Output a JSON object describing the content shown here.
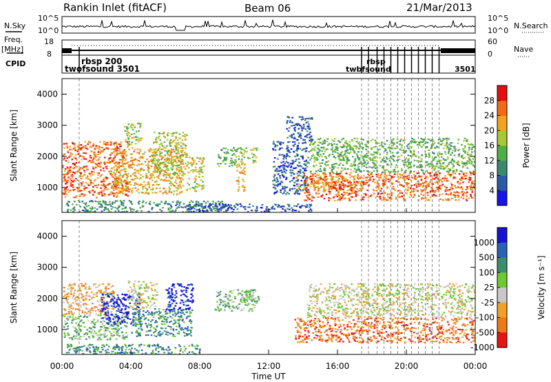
{
  "header": {
    "radar": "Rankin Inlet (fitACF)",
    "beam": "Beam 06",
    "date": "21/Mar/2013"
  },
  "top_panels": {
    "nsky_label": "N.Sky",
    "nsky_ticks": [
      "10^5",
      "10^0"
    ],
    "nsearch_label": "N.Search",
    "nsearch_ticks": [
      "10^5",
      "10^0"
    ],
    "freq_label_1": "Freq.",
    "freq_label_2": "[MHz]",
    "freq_ticks": [
      "18",
      "8"
    ],
    "nave_label": "Nave",
    "nave_ticks": [
      "60",
      "0"
    ],
    "cpid_label": "CPID",
    "cpid_labels": [
      "rbsp 200",
      "twofsound 3501"
    ],
    "cpid_right_labels": [
      "rbsp",
      "twbfsound",
      "3501"
    ]
  },
  "chart_data": [
    {
      "type": "heatmap",
      "name": "power",
      "ylabel": "Slant Range [km]",
      "xlabel": "",
      "y_ticks": [
        "1000",
        "2000",
        "3000",
        "4000"
      ],
      "ylim": [
        200,
        4500
      ],
      "xlim_hours": [
        0,
        24
      ],
      "colorbar": {
        "label": "Power [dB]",
        "ticks": [
          "4",
          "8",
          "12",
          "16",
          "20",
          "24",
          "28"
        ],
        "range": [
          0,
          32
        ],
        "colors": [
          "#1414e6",
          "#2a5aa8",
          "#3c8a6e",
          "#4fae46",
          "#a6c832",
          "#f2a21e",
          "#f26a14",
          "#e60f0f"
        ]
      },
      "echo_regions": [
        {
          "t0": 0.0,
          "t1": 3.8,
          "r0": 700,
          "r1": 2500,
          "power": 26
        },
        {
          "t0": 2.8,
          "t1": 7.0,
          "r0": 800,
          "r1": 2300,
          "power": 22
        },
        {
          "t0": 3.6,
          "t1": 4.6,
          "r0": 2400,
          "r1": 3100,
          "power": 18
        },
        {
          "t0": 5.2,
          "t1": 7.2,
          "r0": 1400,
          "r1": 2800,
          "power": 16
        },
        {
          "t0": 7.2,
          "t1": 8.2,
          "r0": 900,
          "r1": 2000,
          "power": 18
        },
        {
          "t0": 9.0,
          "t1": 10.4,
          "r0": 1700,
          "r1": 2300,
          "power": 14
        },
        {
          "t0": 10.4,
          "t1": 11.3,
          "r0": 1800,
          "r1": 2300,
          "power": 16
        },
        {
          "t0": 10.1,
          "t1": 10.6,
          "r0": 900,
          "r1": 1800,
          "power": 20
        },
        {
          "t0": 0.2,
          "t1": 9.5,
          "r0": 220,
          "r1": 600,
          "power": 8
        },
        {
          "t0": 7.2,
          "t1": 14.5,
          "r0": 220,
          "r1": 500,
          "power": 6
        },
        {
          "t0": 13.5,
          "t1": 17.5,
          "r0": 900,
          "r1": 1400,
          "power": 22
        },
        {
          "t0": 14.0,
          "t1": 24.0,
          "r0": 600,
          "r1": 1500,
          "power": 24
        },
        {
          "t0": 14.2,
          "t1": 24.0,
          "r0": 1500,
          "r1": 2000,
          "power": 12
        },
        {
          "t0": 14.3,
          "t1": 24.0,
          "r0": 2000,
          "r1": 2600,
          "power": 14
        },
        {
          "t0": 12.2,
          "t1": 14.2,
          "r0": 800,
          "r1": 2500,
          "power": 7
        },
        {
          "t0": 13.0,
          "t1": 14.5,
          "r0": 2500,
          "r1": 3300,
          "power": 6
        }
      ]
    },
    {
      "type": "heatmap",
      "name": "velocity",
      "ylabel": "Slant Range [km]",
      "xlabel": "Time UT",
      "y_ticks": [
        "1000",
        "2000",
        "3000",
        "4000"
      ],
      "ylim": [
        200,
        4500
      ],
      "x_ticks": [
        "00:00",
        "04:00",
        "08:00",
        "12:00",
        "16:00",
        "20:00",
        "00:00"
      ],
      "xlim_hours": [
        0,
        24
      ],
      "colorbar": {
        "label": "Velocity [m s⁻¹]",
        "ticks": [
          "1000",
          "500",
          "100",
          "25",
          "-25",
          "-100",
          "-500",
          "-1000"
        ],
        "colors": [
          "#1414d2",
          "#2a62b4",
          "#3c8c6e",
          "#6ec832",
          "#c8c8c8",
          "#f0a028",
          "#f07814",
          "#e61414"
        ]
      },
      "echo_regions": [
        {
          "t0": 0.0,
          "t1": 3.8,
          "r0": 700,
          "r1": 1500,
          "vel": 3
        },
        {
          "t0": 0.0,
          "t1": 3.0,
          "r0": 1500,
          "r1": 2500,
          "vel": 5
        },
        {
          "t0": 2.2,
          "t1": 4.5,
          "r0": 1200,
          "r1": 2200,
          "vel": 0
        },
        {
          "t0": 3.8,
          "t1": 5.5,
          "r0": 1700,
          "r1": 2600,
          "vel": 4
        },
        {
          "t0": 4.0,
          "t1": 7.5,
          "r0": 800,
          "r1": 1700,
          "vel": 2
        },
        {
          "t0": 6.0,
          "t1": 7.6,
          "r0": 1600,
          "r1": 2500,
          "vel": 0
        },
        {
          "t0": 8.8,
          "t1": 11.2,
          "r0": 1600,
          "r1": 2300,
          "vel": 3
        },
        {
          "t0": 10.6,
          "t1": 11.4,
          "r0": 1800,
          "r1": 2300,
          "vel": 3
        },
        {
          "t0": 0.2,
          "t1": 8.0,
          "r0": 220,
          "r1": 550,
          "vel": 2
        },
        {
          "t0": 13.5,
          "t1": 24.0,
          "r0": 600,
          "r1": 1400,
          "vel": 6
        },
        {
          "t0": 14.2,
          "t1": 24.0,
          "r0": 1400,
          "r1": 1900,
          "vel": 4
        },
        {
          "t0": 14.3,
          "t1": 24.0,
          "r0": 1900,
          "r1": 2500,
          "vel": 4
        }
      ]
    }
  ],
  "cpid_change_times": [
    1.0,
    17.4,
    17.8,
    18.3,
    18.7,
    19.1,
    19.5,
    19.9,
    20.3,
    20.7,
    21.1,
    21.5,
    21.9
  ]
}
